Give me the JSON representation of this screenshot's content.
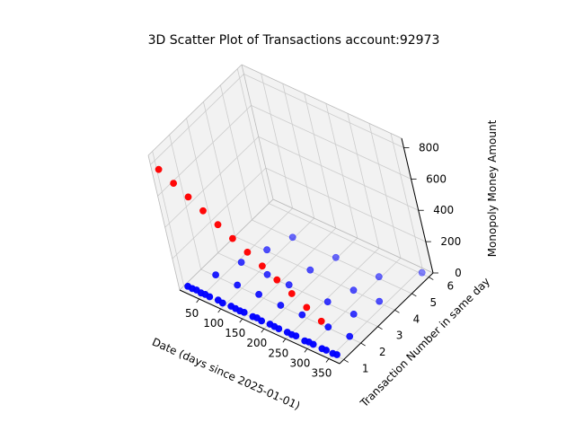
{
  "chart_data": {
    "type": "scatter3d",
    "title": "3D Scatter Plot of Transactions account:92973",
    "xlabel": "Date (days since 2025-01-01)",
    "ylabel": "Transaction Number in same day",
    "zlabel": "Monopoly Money Amount",
    "x_ticks": [
      "50",
      "100",
      "150",
      "200",
      "250",
      "300",
      "350"
    ],
    "y_ticks": [
      "1",
      "2",
      "3",
      "4",
      "5",
      "6"
    ],
    "z_ticks": [
      "0",
      "200",
      "400",
      "600",
      "800"
    ],
    "xlim": [
      5,
      375
    ],
    "ylim": [
      0.75,
      6.25
    ],
    "zlim": [
      0,
      860
    ],
    "grid": true,
    "colors": {
      "high_amount": "#ff0000",
      "normal": "#0000ff",
      "pane": "#f2f2f2",
      "grid": "#cccccc"
    },
    "series": [
      {
        "color": "#ff0000",
        "points": [
          [
            10,
            1,
            750
          ],
          [
            40,
            1,
            700
          ],
          [
            70,
            1,
            650
          ],
          [
            100,
            1,
            600
          ],
          [
            130,
            1,
            550
          ],
          [
            160,
            1,
            500
          ],
          [
            190,
            1,
            450
          ],
          [
            220,
            1,
            400
          ],
          [
            250,
            1,
            350
          ],
          [
            280,
            1,
            300
          ],
          [
            310,
            1,
            250
          ],
          [
            340,
            1,
            200
          ]
        ]
      },
      {
        "color": "#0000ff",
        "points": [
          [
            15,
            1,
            10
          ],
          [
            25,
            1,
            8
          ],
          [
            35,
            1,
            12
          ],
          [
            45,
            1,
            6
          ],
          [
            55,
            1,
            9
          ],
          [
            65,
            1,
            7
          ],
          [
            85,
            1,
            11
          ],
          [
            95,
            1,
            5
          ],
          [
            115,
            1,
            10
          ],
          [
            125,
            1,
            8
          ],
          [
            135,
            1,
            6
          ],
          [
            145,
            1,
            9
          ],
          [
            165,
            1,
            7
          ],
          [
            175,
            1,
            12
          ],
          [
            185,
            1,
            5
          ],
          [
            205,
            1,
            10
          ],
          [
            215,
            1,
            8
          ],
          [
            225,
            1,
            6
          ],
          [
            245,
            1,
            9
          ],
          [
            255,
            1,
            7
          ],
          [
            265,
            1,
            11
          ],
          [
            285,
            1,
            5
          ],
          [
            295,
            1,
            10
          ],
          [
            305,
            1,
            8
          ],
          [
            325,
            1,
            6
          ],
          [
            335,
            1,
            9
          ],
          [
            350,
            1,
            7
          ],
          [
            360,
            1,
            12
          ],
          [
            40,
            2,
            10
          ],
          [
            90,
            2,
            8
          ],
          [
            140,
            2,
            12
          ],
          [
            190,
            2,
            6
          ],
          [
            240,
            2,
            9
          ],
          [
            300,
            2,
            7
          ],
          [
            350,
            2,
            11
          ],
          [
            60,
            3,
            10
          ],
          [
            120,
            3,
            8
          ],
          [
            170,
            3,
            6
          ],
          [
            260,
            3,
            12
          ],
          [
            320,
            3,
            9
          ],
          [
            80,
            4,
            10
          ],
          [
            180,
            4,
            8
          ],
          [
            280,
            4,
            6
          ],
          [
            340,
            4,
            11
          ],
          [
            100,
            5,
            10
          ],
          [
            200,
            5,
            8
          ],
          [
            300,
            5,
            12
          ],
          [
            360,
            6,
            9
          ]
        ]
      }
    ]
  }
}
